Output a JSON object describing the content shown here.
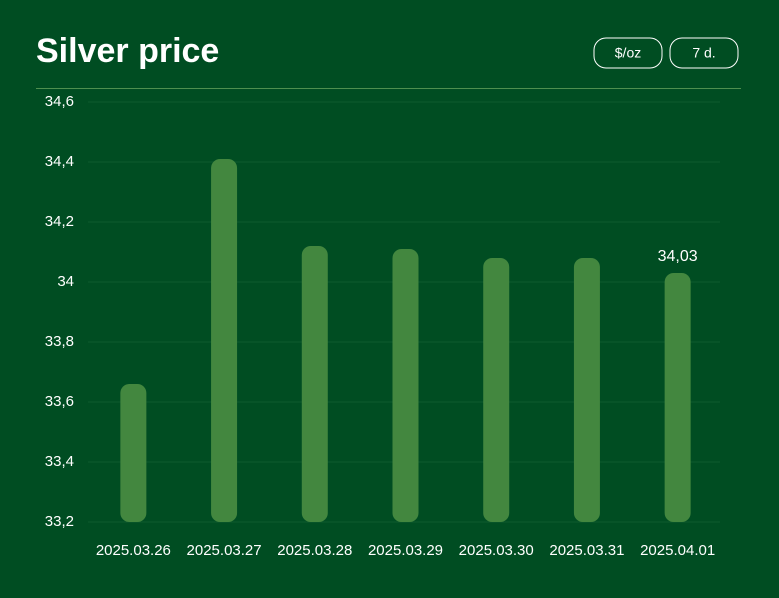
{
  "chart_data": {
    "type": "bar",
    "title": "Silver price",
    "buttons": [
      "$/oz",
      "7 d."
    ],
    "categories": [
      "2025.03.26",
      "2025.03.27",
      "2025.03.28",
      "2025.03.29",
      "2025.03.30",
      "2025.03.31",
      "2025.04.01"
    ],
    "values": [
      33.66,
      34.41,
      34.12,
      34.11,
      34.08,
      34.08,
      34.03
    ],
    "value_labels": [
      null,
      null,
      null,
      null,
      null,
      null,
      "34,03"
    ],
    "color": "#43873f",
    "ylim": [
      33.2,
      34.6
    ],
    "yticks": [
      {
        "value": 33.2,
        "label": "33,2"
      },
      {
        "value": 33.4,
        "label": "33,4"
      },
      {
        "value": 33.6,
        "label": "33,6"
      },
      {
        "value": 33.8,
        "label": "33,8"
      },
      34,
      {
        "value": 34.2,
        "label": "34,2"
      },
      {
        "value": 34.4,
        "label": "34,4"
      },
      {
        "value": 34.6,
        "label": "34,6"
      }
    ],
    "grid": true
  }
}
